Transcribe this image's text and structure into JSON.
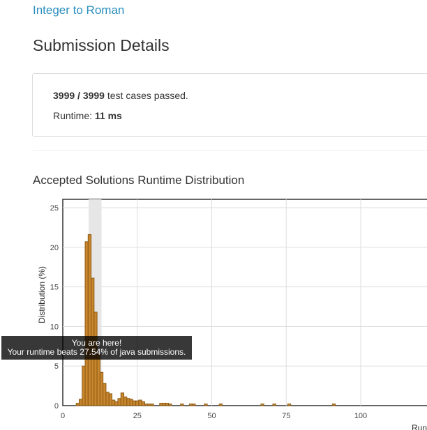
{
  "problem": {
    "title": "Integer to Roman"
  },
  "page": {
    "title": "Submission Details"
  },
  "result": {
    "passed": "3999",
    "separator": " / ",
    "total": "3999",
    "passed_suffix": " test cases passed.",
    "runtime_label": "Runtime: ",
    "runtime_value": "11 ms"
  },
  "chart_heading": "Accepted Solutions Runtime Distribution",
  "tooltip": {
    "line1": "You are here!",
    "line2": "Your runtime beats 27.54% of java submissions."
  },
  "chart_data": {
    "type": "bar",
    "title": "Accepted Solutions Runtime Distribution",
    "xlabel": "Runtime (ms)",
    "ylabel": "Distribution (%)",
    "xlim": [
      0,
      120
    ],
    "ylim": [
      0,
      26
    ],
    "xticks": [
      0,
      25,
      50,
      75,
      100
    ],
    "yticks": [
      0,
      5,
      10,
      15,
      20,
      25
    ],
    "highlight_range": [
      9,
      13
    ],
    "grid": true,
    "bar_color": "#c8862e",
    "bar_edge_color": "#8a5a12",
    "x": [
      5,
      6,
      7,
      8,
      9,
      10,
      11,
      12,
      13,
      14,
      15,
      16,
      17,
      18,
      19,
      20,
      21,
      22,
      23,
      24,
      25,
      26,
      27,
      28,
      29,
      30,
      33,
      34,
      35,
      36,
      40,
      43,
      44,
      48,
      53,
      67,
      71,
      76,
      91
    ],
    "values": [
      0.3,
      0.8,
      5.0,
      20.7,
      21.6,
      16.1,
      11.8,
      6.6,
      4.2,
      2.8,
      1.7,
      1.5,
      0.7,
      0.5,
      0.9,
      1.6,
      1.1,
      0.9,
      0.8,
      0.6,
      0.6,
      0.7,
      0.5,
      0.2,
      0.2,
      0.2,
      0.3,
      0.3,
      0.3,
      0.2,
      0.2,
      0.2,
      0.2,
      0.2,
      0.2,
      0.2,
      0.2,
      0.2,
      0.2
    ]
  }
}
